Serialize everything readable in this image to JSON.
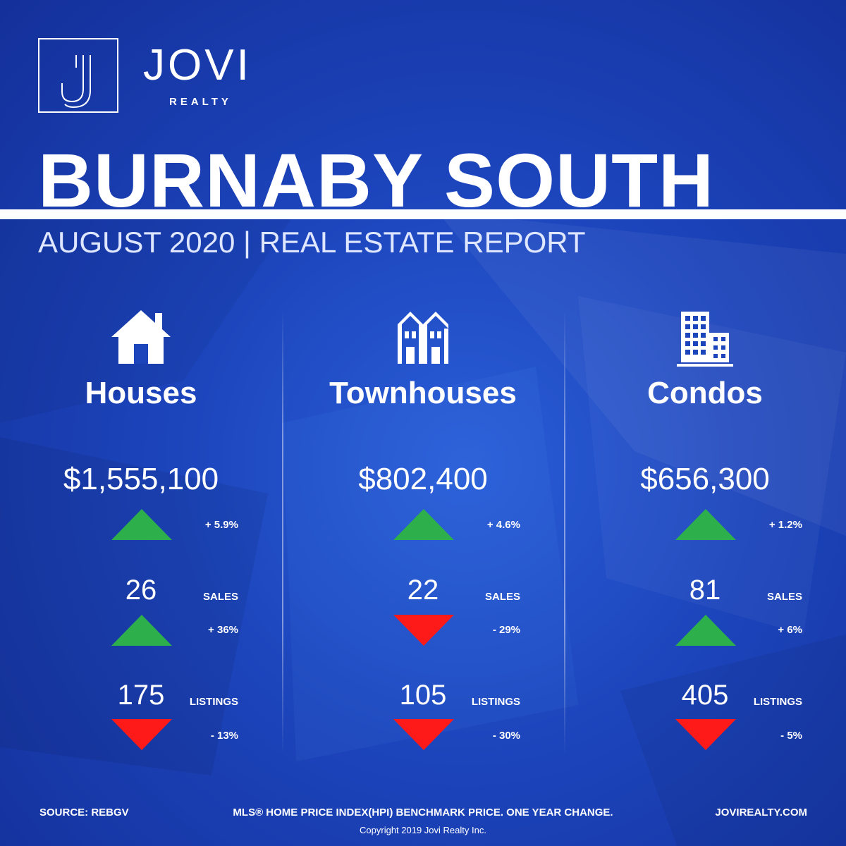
{
  "brand": {
    "name": "JOVI",
    "sub": "REALTY",
    "logo_letter": "J"
  },
  "title": "BURNABY SOUTH",
  "subtitle": "AUGUST 2020 | REAL ESTATE REPORT",
  "colors": {
    "background": "#1c44bb",
    "up": "#2db04b",
    "down": "#ff1a1a",
    "text": "#ffffff"
  },
  "categories": [
    {
      "name": "Houses",
      "icon": "house-icon",
      "price": "$1,555,100",
      "price_change": "+ 5.9%",
      "price_direction": "up",
      "sales": "26",
      "sales_label": "SALES",
      "sales_change": "+ 36%",
      "sales_direction": "up",
      "listings": "175",
      "listings_label": "LISTINGS",
      "listings_change": "- 13%",
      "listings_direction": "down"
    },
    {
      "name": "Townhouses",
      "icon": "townhouse-icon",
      "price": "$802,400",
      "price_change": "+ 4.6%",
      "price_direction": "up",
      "sales": "22",
      "sales_label": "SALES",
      "sales_change": "- 29%",
      "sales_direction": "down",
      "listings": "105",
      "listings_label": "LISTINGS",
      "listings_change": "- 30%",
      "listings_direction": "down"
    },
    {
      "name": "Condos",
      "icon": "condo-building-icon",
      "price": "$656,300",
      "price_change": "+ 1.2%",
      "price_direction": "up",
      "sales": "81",
      "sales_label": "SALES",
      "sales_change": "+ 6%",
      "sales_direction": "up",
      "listings": "405",
      "listings_label": "LISTINGS",
      "listings_change": "- 5%",
      "listings_direction": "down"
    }
  ],
  "footer": {
    "source": "SOURCE:  REBGV",
    "note": "MLS® HOME PRICE INDEX(HPI) BENCHMARK PRICE. ONE YEAR CHANGE.",
    "website": "JOVIREALTY.COM",
    "copyright": "Copyright 2019 Jovi Realty Inc."
  }
}
